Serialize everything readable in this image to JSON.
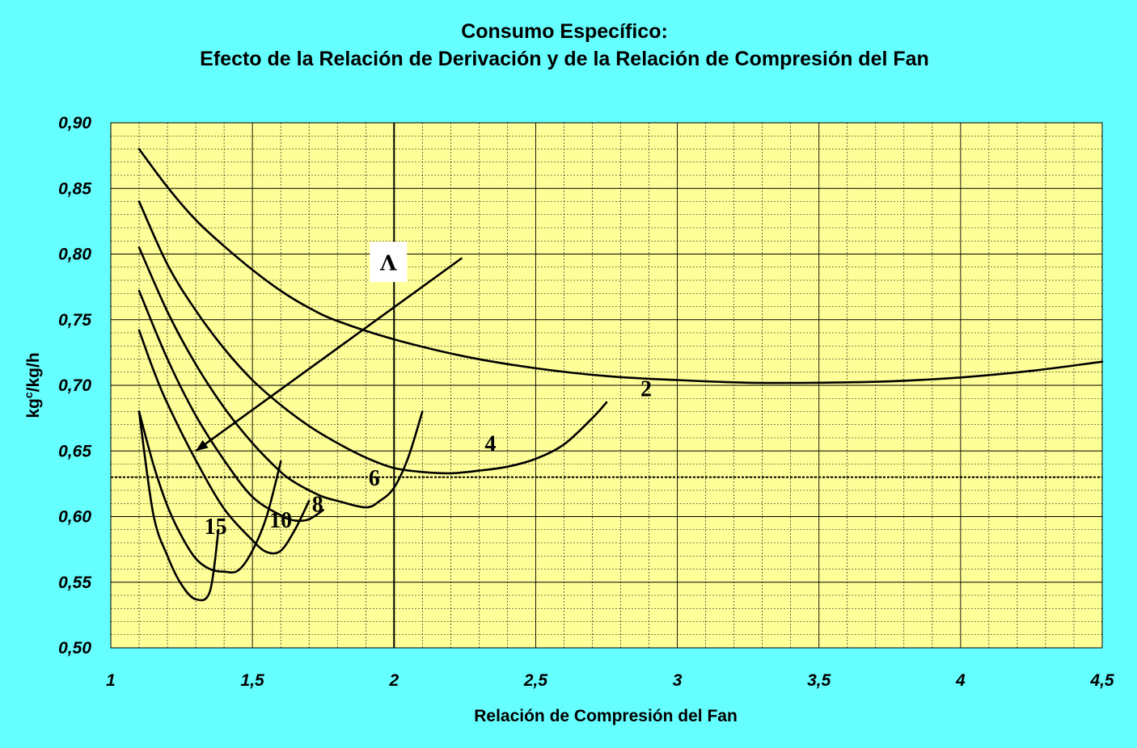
{
  "chart_data": {
    "type": "line",
    "title": "Consumo Específico:",
    "subtitle": "Efecto de la Relación de Derivación y de la Relación de Compresión del Fan",
    "xlabel": "Relación de Compresión del Fan",
    "ylabel_base": "kg",
    "ylabel_sup": "c",
    "ylabel_rest": "/kg/h",
    "xlim": [
      1,
      4.5
    ],
    "ylim": [
      0.5,
      0.9
    ],
    "x_ticks": [
      1,
      1.5,
      2,
      2.5,
      3,
      3.5,
      4,
      4.5
    ],
    "x_tick_labels": [
      "1",
      "1,5",
      "2",
      "2,5",
      "3",
      "3,5",
      "4",
      "4,5"
    ],
    "y_ticks": [
      0.5,
      0.55,
      0.6,
      0.65,
      0.7,
      0.75,
      0.8,
      0.85,
      0.9
    ],
    "y_tick_labels": [
      "0,50",
      "0,55",
      "0,60",
      "0,65",
      "0,70",
      "0,75",
      "0,80",
      "0,85",
      "0,90"
    ],
    "grid": true,
    "plot_background": "#ffff99",
    "page_background": "#66ffff",
    "series": [
      {
        "name": "2",
        "x": [
          1.1,
          1.2,
          1.3,
          1.4,
          1.5,
          1.6,
          1.7,
          1.8,
          2.0,
          2.25,
          2.5,
          2.75,
          3.0,
          3.25,
          3.5,
          3.75,
          4.0,
          4.25,
          4.5
        ],
        "y": [
          0.88,
          0.851,
          0.826,
          0.806,
          0.788,
          0.772,
          0.759,
          0.749,
          0.735,
          0.722,
          0.713,
          0.707,
          0.704,
          0.702,
          0.702,
          0.703,
          0.706,
          0.711,
          0.718
        ]
      },
      {
        "name": "4",
        "x": [
          1.1,
          1.2,
          1.3,
          1.4,
          1.5,
          1.6,
          1.7,
          1.8,
          1.9,
          2.0,
          2.1,
          2.2,
          2.3,
          2.4,
          2.5,
          2.6,
          2.7,
          2.75
        ],
        "y": [
          0.84,
          0.792,
          0.757,
          0.728,
          0.704,
          0.685,
          0.669,
          0.656,
          0.645,
          0.637,
          0.634,
          0.633,
          0.635,
          0.638,
          0.644,
          0.655,
          0.675,
          0.687
        ]
      },
      {
        "name": "6",
        "x": [
          1.1,
          1.2,
          1.3,
          1.4,
          1.5,
          1.6,
          1.65,
          1.7,
          1.75,
          1.8,
          1.9,
          1.95,
          2.0,
          2.05,
          2.1
        ],
        "y": [
          0.805,
          0.756,
          0.716,
          0.683,
          0.656,
          0.634,
          0.626,
          0.62,
          0.615,
          0.612,
          0.607,
          0.612,
          0.622,
          0.645,
          0.68
        ]
      },
      {
        "name": "8",
        "x": [
          1.1,
          1.2,
          1.3,
          1.4,
          1.5,
          1.6,
          1.65,
          1.7,
          1.75
        ],
        "y": [
          0.772,
          0.72,
          0.677,
          0.643,
          0.615,
          0.601,
          0.597,
          0.598,
          0.605
        ]
      },
      {
        "name": "10",
        "x": [
          1.1,
          1.15,
          1.2,
          1.3,
          1.4,
          1.5,
          1.55,
          1.6,
          1.65,
          1.7
        ],
        "y": [
          0.742,
          0.712,
          0.686,
          0.643,
          0.606,
          0.582,
          0.573,
          0.574,
          0.59,
          0.612
        ]
      },
      {
        "name": "15",
        "x": [
          1.1,
          1.15,
          1.2,
          1.25,
          1.3,
          1.35,
          1.4,
          1.45,
          1.5,
          1.55,
          1.6
        ],
        "y": [
          0.68,
          0.64,
          0.608,
          0.585,
          0.568,
          0.56,
          0.558,
          0.559,
          0.574,
          0.6,
          0.642
        ]
      },
      {
        "name": "",
        "x": [
          1.1,
          1.15,
          1.2,
          1.25,
          1.3,
          1.35,
          1.38
        ],
        "y": [
          0.68,
          0.602,
          0.57,
          0.548,
          0.537,
          0.543,
          0.59
        ]
      }
    ],
    "curve_labels": [
      {
        "text": "2",
        "x": 2.89,
        "y": 0.698
      },
      {
        "text": "4",
        "x": 2.34,
        "y": 0.656
      },
      {
        "text": "6",
        "x": 1.93,
        "y": 0.63
      },
      {
        "text": "8",
        "x": 1.73,
        "y": 0.61
      },
      {
        "text": "10",
        "x": 1.6,
        "y": 0.598
      },
      {
        "text": "15",
        "x": 1.37,
        "y": 0.593
      }
    ],
    "reference_lines": {
      "vertical_x": 2,
      "horizontal_dotted_y": 0.63
    },
    "arrow": {
      "from": [
        2.24,
        0.797
      ],
      "to": [
        1.3,
        0.65
      ],
      "label": "Λ",
      "label_x": 1.98,
      "label_y": 0.794
    }
  }
}
